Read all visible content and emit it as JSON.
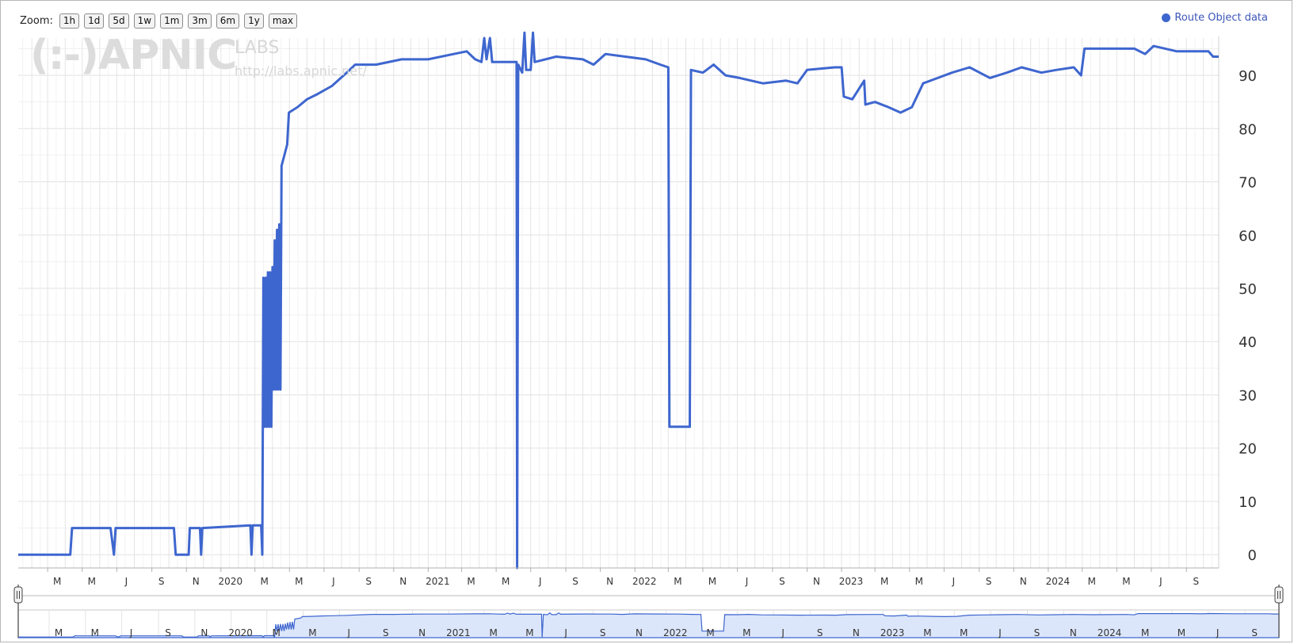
{
  "zoom": {
    "label": "Zoom:",
    "buttons": [
      "1h",
      "1d",
      "5d",
      "1w",
      "1m",
      "3m",
      "6m",
      "1y",
      "max"
    ]
  },
  "watermark": {
    "main": "(:-)APNIC",
    "labs": "LABS",
    "url": "http://labs.apnic.net/"
  },
  "colors": {
    "series": "#3e66cf",
    "navigator_fill": "#dce6fa",
    "grid": "#e6e6e6"
  },
  "chart_data": {
    "type": "line",
    "title": "",
    "xlabel": "",
    "ylabel": "",
    "legend": {
      "placement": "top-right",
      "entries": [
        "Route Object data"
      ]
    },
    "grid": true,
    "x_range": [
      "2019-01-08",
      "2024-10-28"
    ],
    "ylim": [
      -2.5,
      97
    ],
    "y_ticks": [
      0,
      10,
      20,
      30,
      40,
      50,
      60,
      70,
      80,
      90
    ],
    "x_tick_labels": [
      {
        "date": "2019-03-01",
        "label": "M"
      },
      {
        "date": "2019-05-01",
        "label": "M"
      },
      {
        "date": "2019-07-01",
        "label": "J"
      },
      {
        "date": "2019-09-01",
        "label": "S"
      },
      {
        "date": "2019-11-01",
        "label": "N"
      },
      {
        "date": "2020-01-01",
        "label": "2020"
      },
      {
        "date": "2020-03-01",
        "label": "M"
      },
      {
        "date": "2020-05-01",
        "label": "M"
      },
      {
        "date": "2020-07-01",
        "label": "J"
      },
      {
        "date": "2020-09-01",
        "label": "S"
      },
      {
        "date": "2020-11-01",
        "label": "N"
      },
      {
        "date": "2021-01-01",
        "label": "2021"
      },
      {
        "date": "2021-03-01",
        "label": "M"
      },
      {
        "date": "2021-05-01",
        "label": "M"
      },
      {
        "date": "2021-07-01",
        "label": "J"
      },
      {
        "date": "2021-09-01",
        "label": "S"
      },
      {
        "date": "2021-11-01",
        "label": "N"
      },
      {
        "date": "2022-01-01",
        "label": "2022"
      },
      {
        "date": "2022-03-01",
        "label": "M"
      },
      {
        "date": "2022-05-01",
        "label": "M"
      },
      {
        "date": "2022-07-01",
        "label": "J"
      },
      {
        "date": "2022-09-01",
        "label": "S"
      },
      {
        "date": "2022-11-01",
        "label": "N"
      },
      {
        "date": "2023-01-01",
        "label": "2023"
      },
      {
        "date": "2023-03-01",
        "label": "M"
      },
      {
        "date": "2023-05-01",
        "label": "M"
      },
      {
        "date": "2023-07-01",
        "label": "J"
      },
      {
        "date": "2023-09-01",
        "label": "S"
      },
      {
        "date": "2023-11-01",
        "label": "N"
      },
      {
        "date": "2024-01-01",
        "label": "2024"
      },
      {
        "date": "2024-03-01",
        "label": "M"
      },
      {
        "date": "2024-05-01",
        "label": "M"
      },
      {
        "date": "2024-07-01",
        "label": "J"
      },
      {
        "date": "2024-09-01",
        "label": "S"
      }
    ],
    "series": [
      {
        "name": "Route Object data",
        "points": [
          [
            "2019-01-08",
            0
          ],
          [
            "2019-04-10",
            0
          ],
          [
            "2019-04-13",
            5
          ],
          [
            "2019-06-20",
            5
          ],
          [
            "2019-06-26",
            0
          ],
          [
            "2019-06-29",
            5
          ],
          [
            "2019-10-10",
            5
          ],
          [
            "2019-10-13",
            0
          ],
          [
            "2019-11-05",
            0
          ],
          [
            "2019-11-07",
            5
          ],
          [
            "2019-11-25",
            5
          ],
          [
            "2019-11-27",
            0
          ],
          [
            "2019-11-29",
            5
          ],
          [
            "2020-02-22",
            5.5
          ],
          [
            "2020-02-24",
            0
          ],
          [
            "2020-02-26",
            5.5
          ],
          [
            "2020-03-12",
            5.5
          ],
          [
            "2020-03-14",
            0
          ],
          [
            "2020-03-16",
            52
          ],
          [
            "2020-03-18",
            24
          ],
          [
            "2020-03-20",
            52
          ],
          [
            "2020-03-22",
            24
          ],
          [
            "2020-03-24",
            53
          ],
          [
            "2020-03-26",
            24
          ],
          [
            "2020-03-28",
            53
          ],
          [
            "2020-03-30",
            24
          ],
          [
            "2020-04-01",
            54
          ],
          [
            "2020-04-03",
            31
          ],
          [
            "2020-04-05",
            59
          ],
          [
            "2020-04-07",
            31
          ],
          [
            "2020-04-09",
            61
          ],
          [
            "2020-04-11",
            31
          ],
          [
            "2020-04-13",
            62
          ],
          [
            "2020-04-15",
            31
          ],
          [
            "2020-04-17",
            73
          ],
          [
            "2020-04-22",
            75
          ],
          [
            "2020-04-27",
            77
          ],
          [
            "2020-04-30",
            83
          ],
          [
            "2020-05-15",
            84
          ],
          [
            "2020-06-01",
            85.5
          ],
          [
            "2020-06-20",
            86.5
          ],
          [
            "2020-07-15",
            88
          ],
          [
            "2020-08-10",
            90.5
          ],
          [
            "2020-08-25",
            92
          ],
          [
            "2020-10-01",
            92
          ],
          [
            "2020-11-15",
            93
          ],
          [
            "2021-01-01",
            93
          ],
          [
            "2021-02-15",
            94
          ],
          [
            "2021-03-10",
            94.5
          ],
          [
            "2021-03-25",
            93
          ],
          [
            "2021-04-05",
            92.5
          ],
          [
            "2021-04-10",
            97
          ],
          [
            "2021-04-14",
            93
          ],
          [
            "2021-04-20",
            97
          ],
          [
            "2021-04-24",
            92.5
          ],
          [
            "2021-05-15",
            92.5
          ],
          [
            "2021-06-06",
            92.5
          ],
          [
            "2021-06-07",
            -2.5
          ],
          [
            "2021-06-09",
            92
          ],
          [
            "2021-06-16",
            90.5
          ],
          [
            "2021-06-20",
            98
          ],
          [
            "2021-06-23",
            91
          ],
          [
            "2021-07-01",
            91
          ],
          [
            "2021-07-05",
            98
          ],
          [
            "2021-07-08",
            92.5
          ],
          [
            "2021-08-15",
            93.5
          ],
          [
            "2021-10-01",
            93
          ],
          [
            "2021-10-20",
            92
          ],
          [
            "2021-11-10",
            94
          ],
          [
            "2021-12-15",
            93.5
          ],
          [
            "2022-01-20",
            93
          ],
          [
            "2022-02-15",
            92
          ],
          [
            "2022-03-01",
            91.5
          ],
          [
            "2022-03-03",
            24
          ],
          [
            "2022-04-08",
            24
          ],
          [
            "2022-04-10",
            91
          ],
          [
            "2022-05-01",
            90.5
          ],
          [
            "2022-05-20",
            92
          ],
          [
            "2022-06-10",
            90
          ],
          [
            "2022-07-05",
            89.5
          ],
          [
            "2022-08-15",
            88.5
          ],
          [
            "2022-09-25",
            89
          ],
          [
            "2022-10-15",
            88.5
          ],
          [
            "2022-11-01",
            91
          ],
          [
            "2022-12-20",
            91.5
          ],
          [
            "2023-01-01",
            91.5
          ],
          [
            "2023-01-05",
            86
          ],
          [
            "2023-01-20",
            85.5
          ],
          [
            "2023-02-10",
            89
          ],
          [
            "2023-02-12",
            84.5
          ],
          [
            "2023-03-01",
            85
          ],
          [
            "2023-03-25",
            84
          ],
          [
            "2023-04-15",
            83
          ],
          [
            "2023-05-05",
            84
          ],
          [
            "2023-05-25",
            88.5
          ],
          [
            "2023-06-20",
            89.5
          ],
          [
            "2023-07-15",
            90.5
          ],
          [
            "2023-08-15",
            91.5
          ],
          [
            "2023-09-20",
            89.5
          ],
          [
            "2023-10-20",
            90.5
          ],
          [
            "2023-11-15",
            91.5
          ],
          [
            "2023-12-20",
            90.5
          ],
          [
            "2024-01-15",
            91
          ],
          [
            "2024-02-15",
            91.5
          ],
          [
            "2024-02-28",
            90
          ],
          [
            "2024-03-05",
            95
          ],
          [
            "2024-06-01",
            95
          ],
          [
            "2024-06-20",
            94
          ],
          [
            "2024-07-05",
            95.5
          ],
          [
            "2024-08-15",
            94.5
          ],
          [
            "2024-10-10",
            94.5
          ],
          [
            "2024-10-18",
            93.5
          ],
          [
            "2024-10-28",
            93.5
          ]
        ]
      }
    ]
  }
}
